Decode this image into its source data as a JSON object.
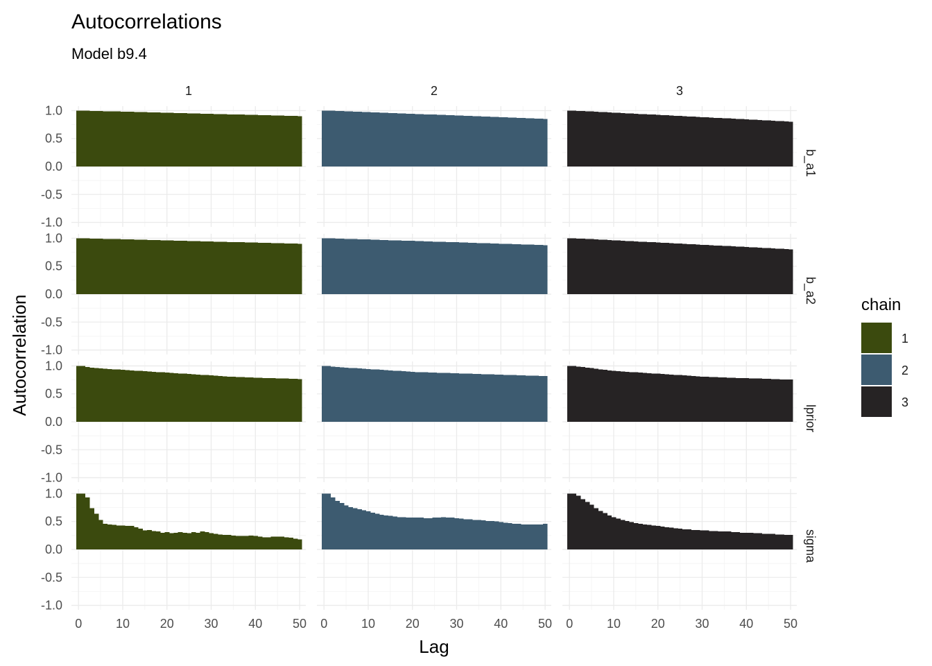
{
  "chart_data": {
    "type": "bar",
    "title": "Autocorrelations",
    "subtitle": "Model b9.4",
    "xlabel": "Lag",
    "ylabel": "Autocorrelation",
    "xlim": [
      0,
      51
    ],
    "ylim": [
      -1.0,
      1.0
    ],
    "x_ticks": [
      "0",
      "10",
      "20",
      "30",
      "40",
      "50"
    ],
    "y_ticks": [
      "-1.0",
      "-0.5",
      "0.0",
      "0.5",
      "1.0"
    ],
    "grid": true,
    "legend_position": "right",
    "facet_columns": [
      "1",
      "2",
      "3"
    ],
    "facet_rows": [
      "b_a1",
      "b_a2",
      "lprior",
      "sigma"
    ],
    "legend": {
      "title": "chain",
      "entries": [
        {
          "label": "1",
          "color": "#3b4a0e"
        },
        {
          "label": "2",
          "color": "#3d5b70"
        },
        {
          "label": "3",
          "color": "#262324"
        }
      ]
    },
    "lags": [
      0,
      1,
      2,
      3,
      4,
      5,
      6,
      7,
      8,
      9,
      10,
      11,
      12,
      13,
      14,
      15,
      16,
      17,
      18,
      19,
      20,
      21,
      22,
      23,
      24,
      25,
      26,
      27,
      28,
      29,
      30,
      31,
      32,
      33,
      34,
      35,
      36,
      37,
      38,
      39,
      40,
      41,
      42,
      43,
      44,
      45,
      46,
      47,
      48,
      49,
      50
    ],
    "panels": [
      {
        "row": "b_a1",
        "chain": "1",
        "values": [
          1.0,
          1.0,
          0.998,
          0.996,
          0.994,
          0.992,
          0.99,
          0.988,
          0.986,
          0.984,
          0.982,
          0.98,
          0.978,
          0.976,
          0.974,
          0.972,
          0.97,
          0.968,
          0.966,
          0.964,
          0.962,
          0.96,
          0.958,
          0.956,
          0.954,
          0.952,
          0.95,
          0.948,
          0.946,
          0.944,
          0.942,
          0.94,
          0.938,
          0.936,
          0.934,
          0.932,
          0.93,
          0.928,
          0.926,
          0.924,
          0.922,
          0.92,
          0.918,
          0.916,
          0.914,
          0.912,
          0.91,
          0.908,
          0.906,
          0.904,
          0.902
        ]
      },
      {
        "row": "b_a1",
        "chain": "2",
        "values": [
          1.0,
          1.0,
          0.997,
          0.994,
          0.991,
          0.988,
          0.985,
          0.982,
          0.979,
          0.976,
          0.973,
          0.97,
          0.967,
          0.964,
          0.961,
          0.958,
          0.955,
          0.952,
          0.949,
          0.946,
          0.943,
          0.94,
          0.937,
          0.934,
          0.931,
          0.928,
          0.925,
          0.922,
          0.919,
          0.916,
          0.913,
          0.91,
          0.907,
          0.904,
          0.901,
          0.898,
          0.895,
          0.892,
          0.889,
          0.886,
          0.883,
          0.88,
          0.877,
          0.874,
          0.871,
          0.868,
          0.865,
          0.862,
          0.859,
          0.856,
          0.853
        ]
      },
      {
        "row": "b_a1",
        "chain": "3",
        "values": [
          1.0,
          1.0,
          0.996,
          0.992,
          0.988,
          0.984,
          0.98,
          0.976,
          0.972,
          0.968,
          0.964,
          0.96,
          0.956,
          0.952,
          0.948,
          0.944,
          0.94,
          0.936,
          0.932,
          0.928,
          0.924,
          0.92,
          0.916,
          0.912,
          0.908,
          0.904,
          0.9,
          0.896,
          0.892,
          0.888,
          0.884,
          0.88,
          0.876,
          0.872,
          0.868,
          0.864,
          0.86,
          0.856,
          0.852,
          0.848,
          0.844,
          0.84,
          0.836,
          0.832,
          0.828,
          0.824,
          0.82,
          0.816,
          0.812,
          0.808,
          0.8
        ]
      },
      {
        "row": "b_a2",
        "chain": "1",
        "values": [
          1.0,
          1.0,
          0.998,
          0.996,
          0.994,
          0.992,
          0.99,
          0.988,
          0.986,
          0.984,
          0.982,
          0.98,
          0.978,
          0.976,
          0.974,
          0.972,
          0.97,
          0.968,
          0.966,
          0.964,
          0.962,
          0.96,
          0.958,
          0.956,
          0.954,
          0.952,
          0.95,
          0.948,
          0.946,
          0.944,
          0.942,
          0.94,
          0.938,
          0.936,
          0.934,
          0.932,
          0.93,
          0.928,
          0.926,
          0.924,
          0.922,
          0.92,
          0.918,
          0.916,
          0.914,
          0.912,
          0.91,
          0.908,
          0.906,
          0.904,
          0.902
        ]
      },
      {
        "row": "b_a2",
        "chain": "2",
        "values": [
          1.0,
          1.0,
          0.998,
          0.995,
          0.993,
          0.99,
          0.988,
          0.985,
          0.983,
          0.98,
          0.978,
          0.975,
          0.973,
          0.97,
          0.968,
          0.965,
          0.963,
          0.96,
          0.958,
          0.955,
          0.953,
          0.95,
          0.948,
          0.945,
          0.943,
          0.94,
          0.938,
          0.935,
          0.933,
          0.93,
          0.928,
          0.925,
          0.923,
          0.92,
          0.918,
          0.915,
          0.913,
          0.91,
          0.908,
          0.905,
          0.903,
          0.9,
          0.898,
          0.895,
          0.893,
          0.89,
          0.888,
          0.885,
          0.883,
          0.88,
          0.878
        ]
      },
      {
        "row": "b_a2",
        "chain": "3",
        "values": [
          1.0,
          1.0,
          0.996,
          0.992,
          0.988,
          0.984,
          0.98,
          0.976,
          0.972,
          0.968,
          0.964,
          0.96,
          0.956,
          0.952,
          0.948,
          0.944,
          0.94,
          0.936,
          0.932,
          0.928,
          0.924,
          0.92,
          0.916,
          0.912,
          0.908,
          0.904,
          0.9,
          0.896,
          0.892,
          0.888,
          0.884,
          0.88,
          0.876,
          0.872,
          0.868,
          0.864,
          0.86,
          0.856,
          0.852,
          0.848,
          0.844,
          0.84,
          0.836,
          0.832,
          0.828,
          0.824,
          0.82,
          0.816,
          0.812,
          0.808,
          0.8
        ]
      },
      {
        "row": "lprior",
        "chain": "1",
        "values": [
          1.0,
          1.0,
          0.98,
          0.97,
          0.96,
          0.955,
          0.95,
          0.945,
          0.94,
          0.935,
          0.93,
          0.925,
          0.92,
          0.915,
          0.91,
          0.905,
          0.9,
          0.895,
          0.89,
          0.885,
          0.88,
          0.875,
          0.87,
          0.865,
          0.86,
          0.855,
          0.85,
          0.845,
          0.84,
          0.835,
          0.83,
          0.825,
          0.82,
          0.815,
          0.81,
          0.805,
          0.8,
          0.798,
          0.795,
          0.793,
          0.79,
          0.788,
          0.785,
          0.783,
          0.78,
          0.778,
          0.775,
          0.773,
          0.77,
          0.768,
          0.765
        ]
      },
      {
        "row": "lprior",
        "chain": "2",
        "values": [
          1.0,
          1.0,
          0.99,
          0.98,
          0.975,
          0.97,
          0.965,
          0.96,
          0.955,
          0.95,
          0.945,
          0.94,
          0.935,
          0.93,
          0.925,
          0.92,
          0.915,
          0.91,
          0.905,
          0.9,
          0.895,
          0.89,
          0.888,
          0.885,
          0.883,
          0.88,
          0.878,
          0.875,
          0.873,
          0.87,
          0.868,
          0.865,
          0.863,
          0.86,
          0.858,
          0.855,
          0.853,
          0.85,
          0.848,
          0.845,
          0.843,
          0.84,
          0.838,
          0.835,
          0.833,
          0.83,
          0.828,
          0.825,
          0.823,
          0.82,
          0.818
        ]
      },
      {
        "row": "lprior",
        "chain": "3",
        "values": [
          1.0,
          1.0,
          0.99,
          0.98,
          0.97,
          0.96,
          0.95,
          0.94,
          0.93,
          0.92,
          0.91,
          0.905,
          0.9,
          0.895,
          0.89,
          0.885,
          0.88,
          0.875,
          0.87,
          0.865,
          0.86,
          0.855,
          0.85,
          0.845,
          0.84,
          0.835,
          0.83,
          0.825,
          0.82,
          0.815,
          0.81,
          0.805,
          0.8,
          0.798,
          0.795,
          0.793,
          0.79,
          0.788,
          0.785,
          0.783,
          0.78,
          0.778,
          0.775,
          0.773,
          0.77,
          0.768,
          0.765,
          0.763,
          0.76,
          0.758,
          0.755
        ]
      },
      {
        "row": "sigma",
        "chain": "1",
        "values": [
          1.0,
          1.0,
          0.93,
          0.74,
          0.64,
          0.53,
          0.46,
          0.45,
          0.44,
          0.43,
          0.43,
          0.42,
          0.42,
          0.4,
          0.37,
          0.34,
          0.35,
          0.33,
          0.32,
          0.3,
          0.31,
          0.29,
          0.3,
          0.31,
          0.3,
          0.29,
          0.31,
          0.3,
          0.32,
          0.31,
          0.29,
          0.28,
          0.27,
          0.26,
          0.26,
          0.25,
          0.24,
          0.24,
          0.24,
          0.25,
          0.24,
          0.23,
          0.22,
          0.22,
          0.23,
          0.23,
          0.23,
          0.22,
          0.21,
          0.19,
          0.18
        ]
      },
      {
        "row": "sigma",
        "chain": "2",
        "values": [
          1.0,
          1.0,
          0.93,
          0.87,
          0.83,
          0.79,
          0.76,
          0.74,
          0.72,
          0.7,
          0.68,
          0.66,
          0.64,
          0.62,
          0.61,
          0.6,
          0.59,
          0.58,
          0.58,
          0.57,
          0.57,
          0.57,
          0.57,
          0.56,
          0.56,
          0.57,
          0.57,
          0.58,
          0.57,
          0.57,
          0.56,
          0.55,
          0.54,
          0.54,
          0.53,
          0.53,
          0.52,
          0.51,
          0.51,
          0.5,
          0.49,
          0.48,
          0.47,
          0.46,
          0.46,
          0.45,
          0.45,
          0.45,
          0.45,
          0.45,
          0.46
        ]
      },
      {
        "row": "sigma",
        "chain": "3",
        "values": [
          1.0,
          1.0,
          0.96,
          0.9,
          0.85,
          0.8,
          0.74,
          0.69,
          0.65,
          0.61,
          0.58,
          0.55,
          0.53,
          0.51,
          0.49,
          0.47,
          0.46,
          0.45,
          0.44,
          0.43,
          0.42,
          0.41,
          0.4,
          0.39,
          0.38,
          0.37,
          0.36,
          0.36,
          0.35,
          0.35,
          0.34,
          0.34,
          0.33,
          0.33,
          0.32,
          0.32,
          0.32,
          0.31,
          0.31,
          0.3,
          0.3,
          0.3,
          0.29,
          0.29,
          0.28,
          0.28,
          0.28,
          0.27,
          0.27,
          0.26,
          0.26
        ]
      }
    ]
  }
}
